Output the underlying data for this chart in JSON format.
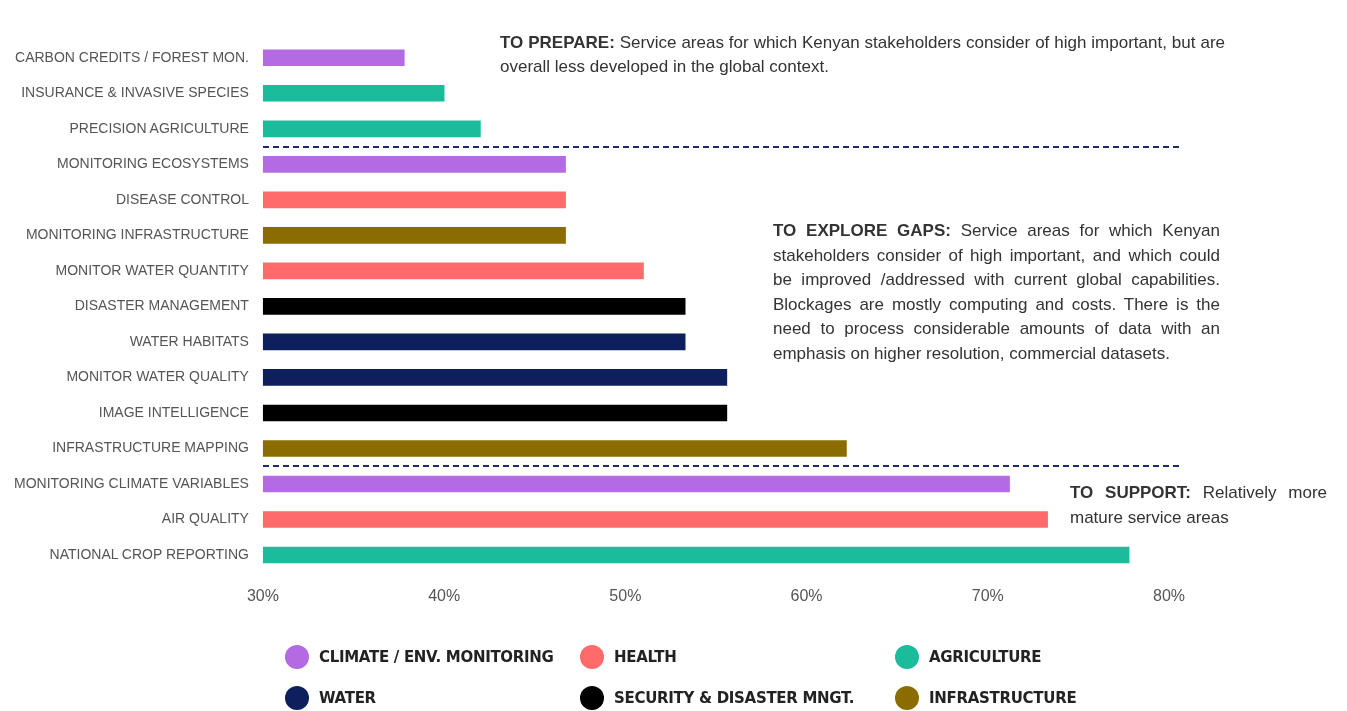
{
  "chart_data": {
    "type": "bar",
    "orientation": "horizontal",
    "categories": [
      "CARBON CREDITS / FOREST MON.",
      "INSURANCE & INVASIVE SPECIES",
      "PRECISION AGRICULTURE",
      "MONITORING ECOSYSTEMS",
      "DISEASE CONTROL",
      "MONITORING INFRASTRUCTURE",
      "MONITOR WATER QUANTITY",
      "DISASTER MANAGEMENT",
      "WATER HABITATS",
      "MONITOR WATER QUALITY",
      "IMAGE INTELLIGENCE",
      "INFRASTRUCTURE MAPPING",
      "MONITORING CLIMATE VARIABLES",
      "AIR QUALITY",
      "NATIONAL CROP REPORTING"
    ],
    "series": [
      {
        "name": "CLIMATE / ENV. MONITORING",
        "color": "#b36ae2",
        "values": [
          37.8,
          null,
          null,
          46.7,
          null,
          null,
          null,
          null,
          null,
          null,
          null,
          null,
          71.2,
          null,
          null
        ]
      },
      {
        "name": "HEALTH",
        "color": "#ff6b6b",
        "values": [
          null,
          null,
          null,
          null,
          46.7,
          null,
          51.0,
          null,
          null,
          null,
          null,
          null,
          null,
          73.3,
          null
        ]
      },
      {
        "name": "AGRICULTURE",
        "color": "#1abc9c",
        "values": [
          null,
          40.0,
          42.0,
          null,
          null,
          null,
          null,
          null,
          null,
          null,
          null,
          null,
          null,
          null,
          77.8
        ]
      },
      {
        "name": "WATER",
        "color": "#0d1f5c",
        "values": [
          null,
          null,
          null,
          null,
          null,
          null,
          null,
          null,
          53.3,
          55.6,
          null,
          null,
          null,
          null,
          null
        ]
      },
      {
        "name": "SECURITY & DISASTER MNGT.",
        "color": "#000000",
        "values": [
          null,
          null,
          null,
          null,
          null,
          null,
          null,
          53.3,
          null,
          null,
          55.6,
          null,
          null,
          null,
          null
        ]
      },
      {
        "name": "INFRASTRUCTURE",
        "color": "#8b6c00",
        "values": [
          null,
          null,
          null,
          null,
          null,
          46.7,
          null,
          null,
          null,
          null,
          null,
          62.2,
          null,
          null,
          null
        ]
      }
    ],
    "xlim": [
      30,
      80
    ],
    "xticks": [
      {
        "value": 30,
        "label": "30%"
      },
      {
        "value": 40,
        "label": "40%"
      },
      {
        "value": 50,
        "label": "50%"
      },
      {
        "value": 60,
        "label": "60%"
      },
      {
        "value": 70,
        "label": "70%"
      },
      {
        "value": 80,
        "label": "80%"
      }
    ],
    "annotations": [
      "TO PREPARE: Service areas for which Kenyan stakeholders consider of high important, but are overall less developed in the global context.",
      "TO EXPLORE GAPS: Service areas for which Kenyan stakeholders consider of high important, and which could be improved /addressed with current global capabilities. Blockages are mostly computing and costs. There is the need to process considerable amounts of data with an emphasis on higher resolution, commercial datasets.",
      "TO SUPPORT: Relatively more mature service areas"
    ],
    "grid": false,
    "legend": "bottom"
  }
}
